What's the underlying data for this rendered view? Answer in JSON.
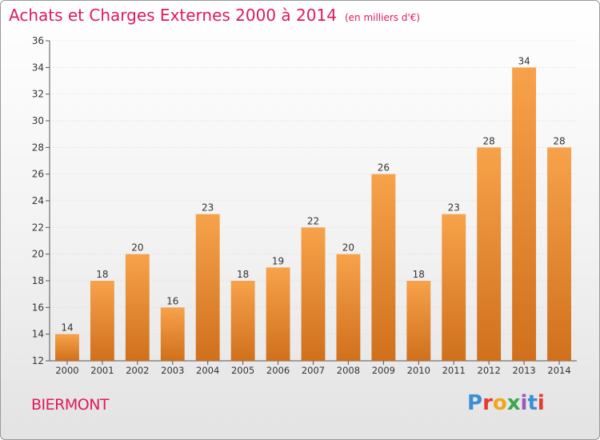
{
  "header": {
    "title": "Achats et Charges Externes 2000 à 2014",
    "unit": "(en milliers d'€)"
  },
  "footer": {
    "commune": "BIERMONT",
    "logo": "Proxiti"
  },
  "colors": {
    "accent": "#e0195a",
    "bar_light": "#f7a24a",
    "bar_dark": "#d0701c"
  },
  "chart_data": {
    "type": "bar",
    "title": "Achats et Charges Externes 2000 à 2014",
    "xlabel": "",
    "ylabel": "",
    "categories": [
      "2000",
      "2001",
      "2002",
      "2003",
      "2004",
      "2005",
      "2006",
      "2007",
      "2008",
      "2009",
      "2010",
      "2011",
      "2012",
      "2013",
      "2014"
    ],
    "values": [
      14,
      18,
      20,
      16,
      23,
      18,
      19,
      22,
      20,
      26,
      18,
      23,
      28,
      34,
      28
    ],
    "ylim": [
      12,
      36
    ],
    "yticks": [
      12,
      14,
      16,
      18,
      20,
      22,
      24,
      26,
      28,
      30,
      32,
      34,
      36
    ],
    "grid": true
  }
}
